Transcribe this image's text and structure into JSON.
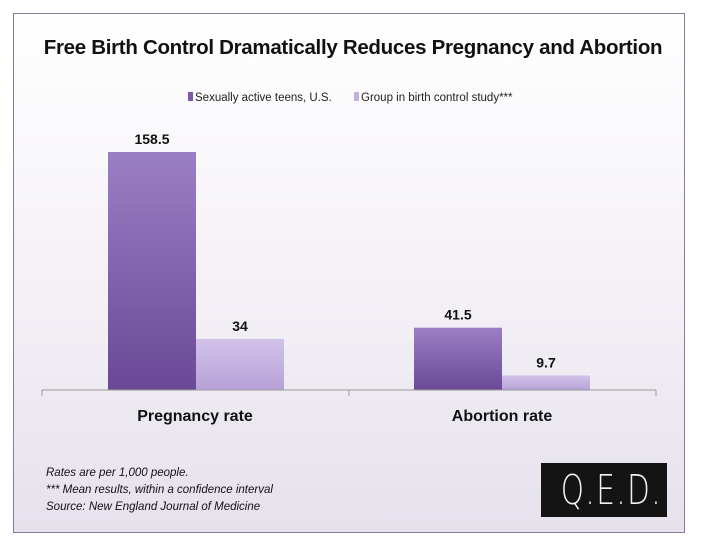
{
  "chart_data": {
    "type": "bar",
    "title": "Free Birth Control Dramatically Reduces Pregnancy and Abortion",
    "categories": [
      "Pregnancy rate",
      "Abortion rate"
    ],
    "series": [
      {
        "name": "Sexually active teens, U.S.",
        "values": [
          158.5,
          41.5
        ],
        "labels": [
          "158.5",
          "41.5"
        ],
        "color": "#7b5aa6"
      },
      {
        "name": "Group in birth control study***",
        "values": [
          34,
          9.7
        ],
        "labels": [
          "34",
          "9.7"
        ],
        "color": "#c3b0df"
      }
    ],
    "xlabel": "",
    "ylabel": "",
    "ylim": [
      0,
      160
    ],
    "grid": false,
    "legend": "top-center"
  },
  "footnotes": [
    "Rates are per 1,000 people.",
    "*** Mean results, within a confidence interval",
    "Source: New England Journal of Medicine"
  ],
  "logo_text": "Q.E.D.",
  "colors": {
    "series1": "#7b5aa6",
    "series2": "#c3b0df",
    "frame": "#8a7b9a"
  }
}
